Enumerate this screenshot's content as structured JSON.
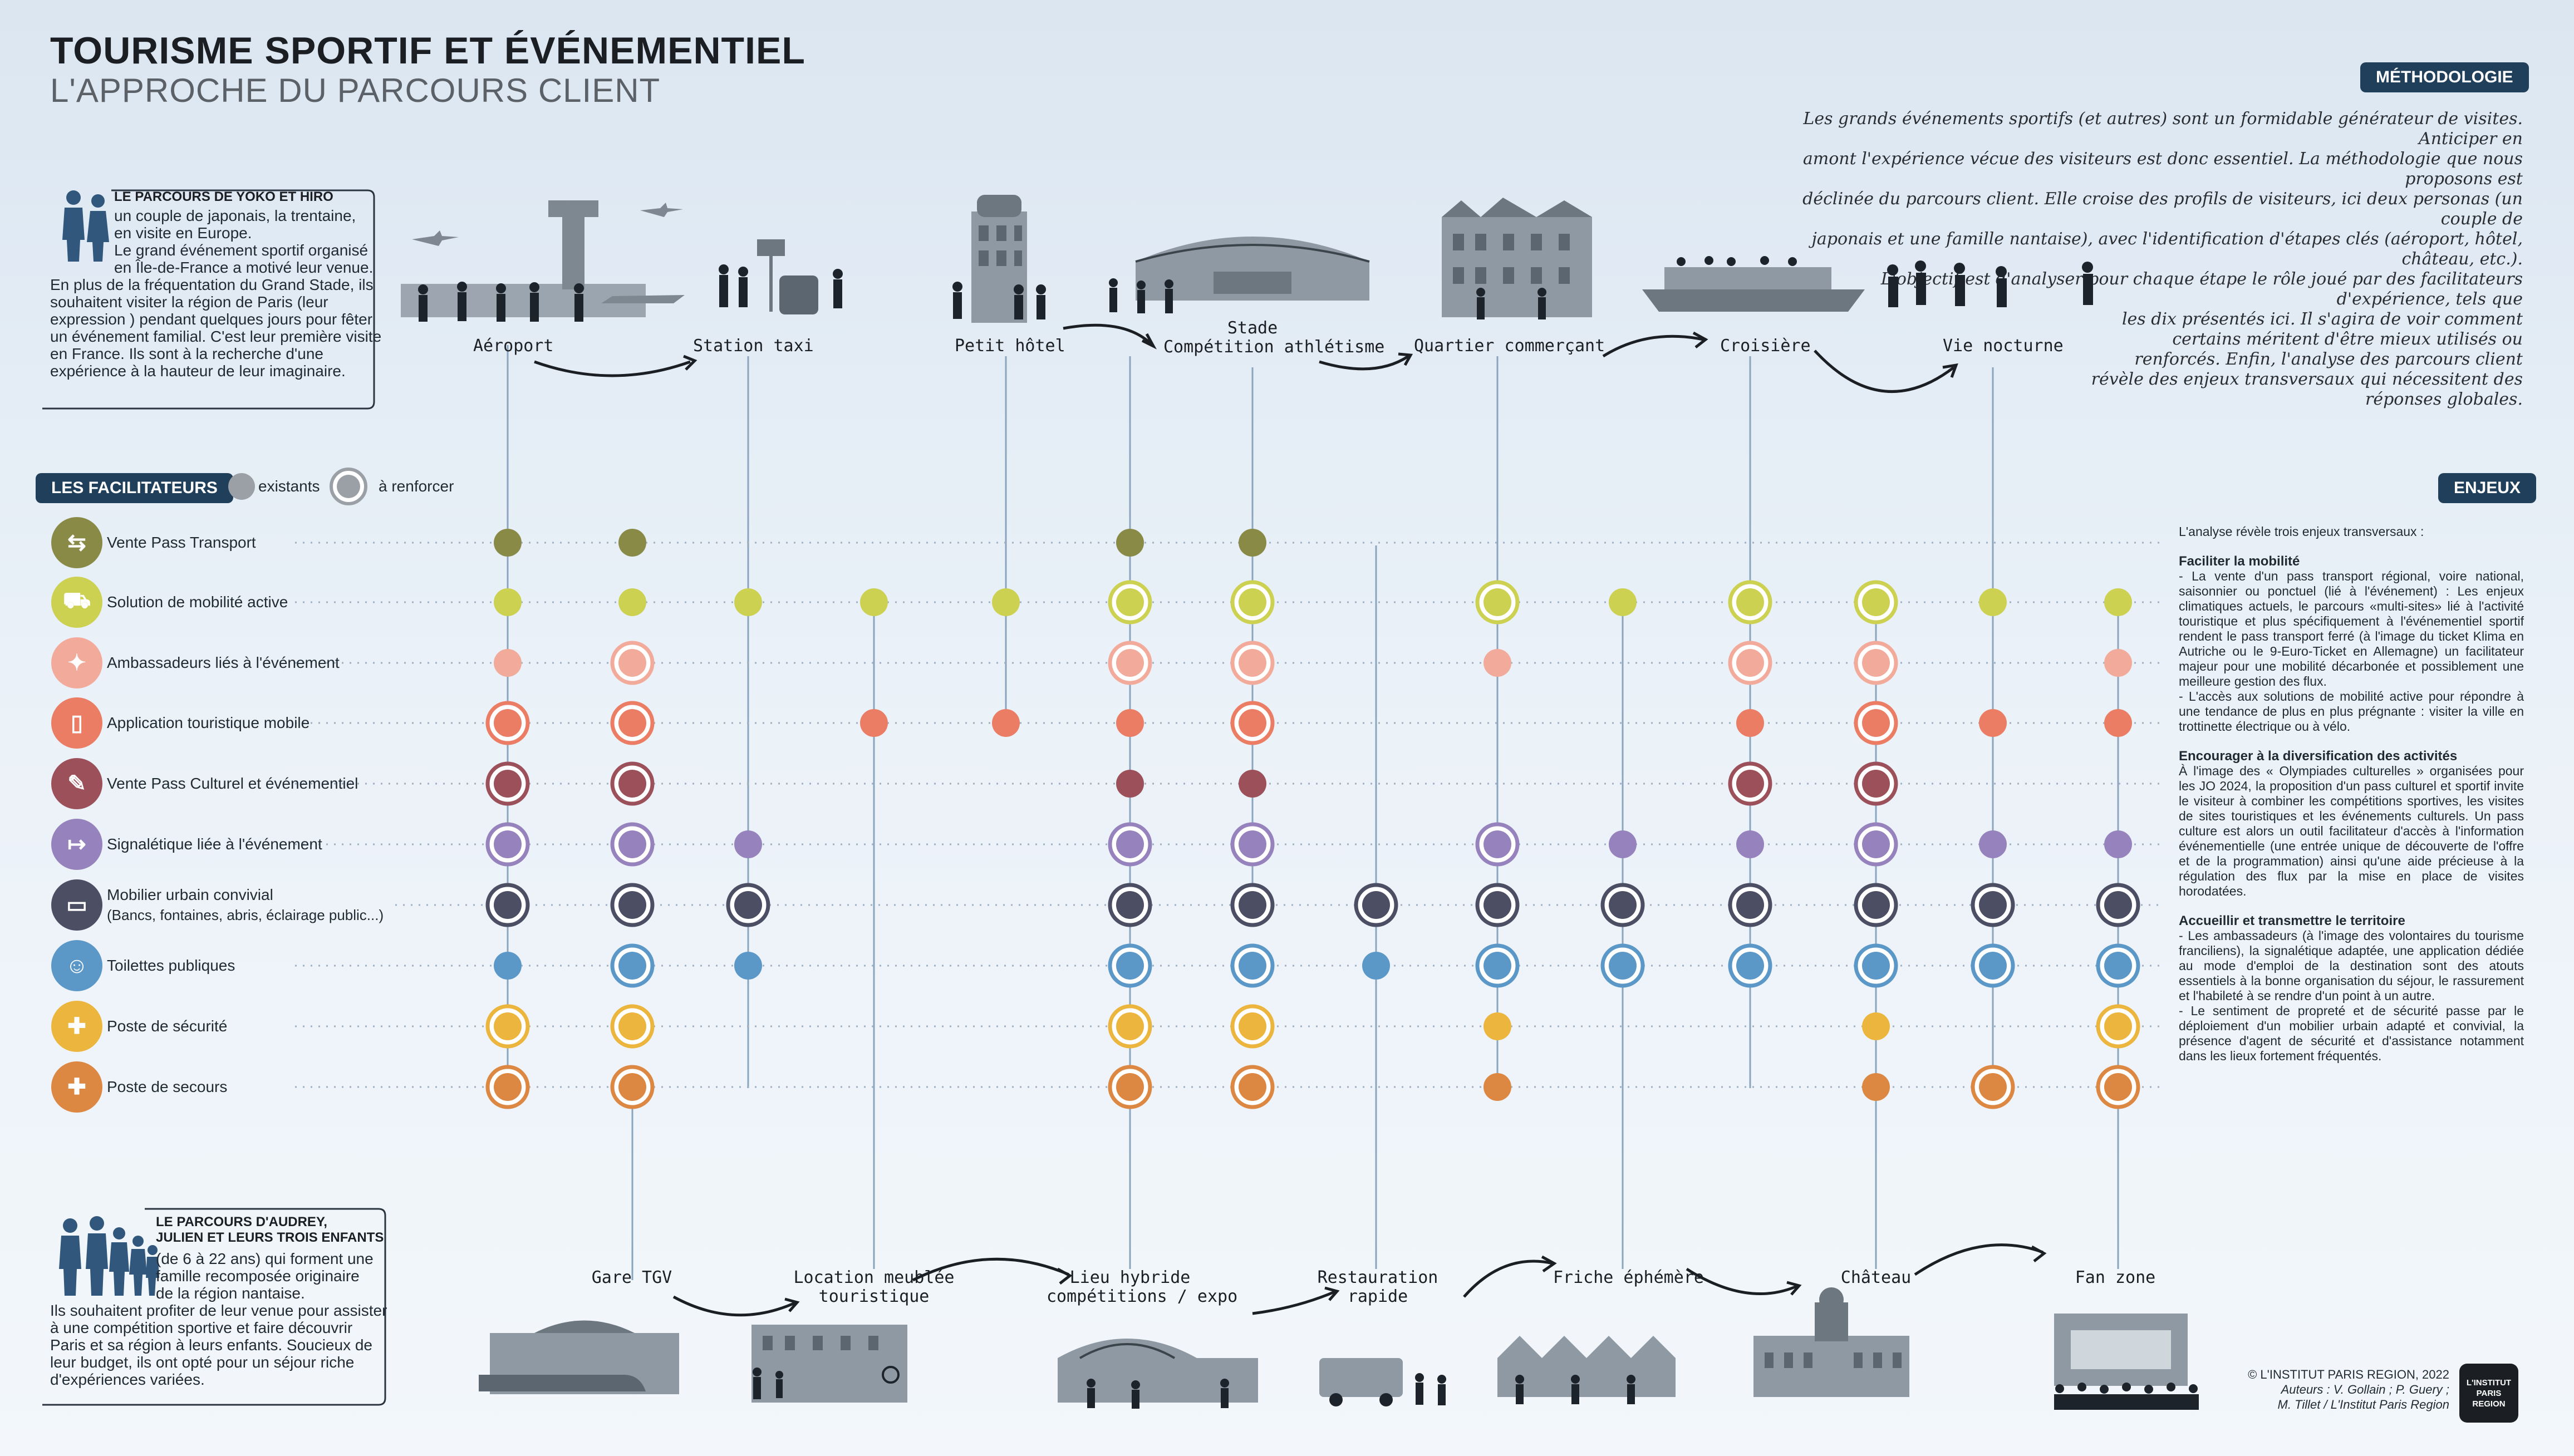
{
  "header": {
    "title": "TOURISME SPORTIF ET ÉVÉNEMENTIEL",
    "subtitle": "L'APPROCHE DU PARCOURS CLIENT"
  },
  "methodology": {
    "tag": "MÉTHODOLOGIE",
    "lines": [
      "Les grands événements sportifs (et autres) sont un formidable générateur de visites. Anticiper en",
      "amont l'expérience vécue des visiteurs est donc essentiel. La méthodologie que nous proposons est",
      "déclinée du parcours client. Elle croise des profils de visiteurs, ici deux personas (un couple de",
      "japonais et une famille nantaise), avec l'identification d'étapes clés (aéroport, hôtel, château, etc.).",
      "L'objectif est d'analyser pour chaque étape le rôle joué par des facilitateurs d'expérience, tels que",
      "les dix présentés ici. Il s'agira de voir comment",
      "certains méritent d'être mieux utilisés ou",
      "renforcés. Enfin, l'analyse des parcours client",
      "révèle des enjeux transversaux qui nécessitent des",
      "réponses globales."
    ]
  },
  "persona_top": {
    "title": "LE PARCOURS DE YOKO ET HIRO",
    "lines": [
      "un couple de japonais, la trentaine,",
      "en visite en Europe.",
      "Le grand événement sportif organisé",
      "en Île-de-France a motivé leur venue.",
      "En plus de la fréquentation du Grand Stade, ils",
      "souhaitent visiter la région de Paris (leur",
      "expression ) pendant quelques jours pour fêter",
      "un événement familial. C'est leur première visite",
      "en France. Ils sont à la recherche d'une",
      "expérience à la hauteur de leur imaginaire."
    ]
  },
  "persona_bottom": {
    "title_1": "LE PARCOURS D'AUDREY,",
    "title_2": "JULIEN ET LEURS TROIS ENFANTS",
    "lines": [
      "(de 6 à 22 ans) qui forment une",
      "famille recomposée originaire",
      "de la région nantaise.",
      "Ils souhaitent profiter de leur venue pour assister",
      "à une compétition sportive et faire découvrir",
      "Paris et sa région à leurs enfants. Soucieux de",
      "leur budget, ils ont opté pour un séjour riche",
      "d'expériences variées."
    ]
  },
  "stages_top": [
    "Aéroport",
    "Station taxi",
    "Petit hôtel",
    "Stade",
    "Compétition athlétisme",
    "Quartier commerçant",
    "Croisière",
    "Vie nocturne"
  ],
  "stages_bottom": [
    "Gare TGV",
    "Location meublée",
    "touristique",
    "Lieu hybride",
    "compétitions / expo",
    "Restauration",
    "rapide",
    "Friche éphémère",
    "Château",
    "Fan zone"
  ],
  "legend": {
    "tag": "LES FACILITATEURS",
    "existing": "existants",
    "reinforce": "à renforcer"
  },
  "facilitators": [
    {
      "label": "Vente Pass Transport",
      "color": "#8a8a47",
      "icon": "transport-icon"
    },
    {
      "label": "Solution de mobilité active",
      "color": "#cdd152",
      "icon": "scooter-icon"
    },
    {
      "label": "Ambassadeurs liés à l'événement",
      "color": "#f2ab9b",
      "icon": "compass-icon"
    },
    {
      "label": "Application touristique mobile",
      "color": "#ea7d63",
      "icon": "phone-icon"
    },
    {
      "label": "Vente Pass Culturel et événementiel",
      "color": "#9c5059",
      "icon": "ticket-icon"
    },
    {
      "label": "Signalétique liée à l'événement",
      "color": "#9682bc",
      "icon": "signpost-icon"
    },
    {
      "label": "Mobilier urbain convivial",
      "label2": "(Bancs, fontaines, abris, éclairage public...)",
      "color": "#4c4e63",
      "icon": "bench-icon"
    },
    {
      "label": "Toilettes publiques",
      "color": "#5b98c8",
      "icon": "toilets-icon"
    },
    {
      "label": "Poste de sécurité",
      "color": "#ecb63e",
      "icon": "security-icon"
    },
    {
      "label": "Poste de secours",
      "color": "#dc8742",
      "icon": "first-aid-icon"
    }
  ],
  "matrix": [
    [
      1,
      1,
      0,
      0,
      0,
      1,
      1,
      0,
      0,
      0,
      0,
      0,
      0,
      0
    ],
    [
      1,
      1,
      1,
      1,
      1,
      2,
      2,
      0,
      2,
      1,
      2,
      2,
      1,
      1
    ],
    [
      1,
      2,
      0,
      0,
      0,
      2,
      2,
      0,
      1,
      0,
      2,
      2,
      0,
      1
    ],
    [
      2,
      2,
      0,
      1,
      1,
      1,
      2,
      0,
      0,
      0,
      1,
      2,
      1,
      1
    ],
    [
      2,
      2,
      0,
      0,
      0,
      1,
      1,
      0,
      0,
      0,
      2,
      2,
      0,
      0
    ],
    [
      2,
      2,
      1,
      0,
      0,
      2,
      2,
      0,
      2,
      1,
      1,
      2,
      1,
      1
    ],
    [
      2,
      2,
      2,
      0,
      0,
      2,
      2,
      2,
      2,
      2,
      2,
      2,
      2,
      2
    ],
    [
      1,
      2,
      1,
      0,
      0,
      2,
      2,
      1,
      2,
      2,
      2,
      2,
      2,
      2
    ],
    [
      2,
      2,
      0,
      0,
      0,
      2,
      2,
      0,
      1,
      0,
      0,
      1,
      0,
      2
    ],
    [
      2,
      2,
      0,
      0,
      0,
      2,
      2,
      0,
      1,
      0,
      0,
      1,
      2,
      2
    ]
  ],
  "enjeux": {
    "tag": "ENJEUX",
    "intro": "L'analyse révèle trois enjeux transversaux :",
    "sections": [
      {
        "title": "Faciliter la mobilité",
        "text": "- La vente d'un pass transport régional, voire national, saisonnier ou ponctuel (lié à l'événement) : Les enjeux climatiques actuels, le parcours «multi-sites» lié à l'activité touristique et plus spécifiquement à l'événementiel sportif rendent le pass transport ferré (à l'image du ticket Klima en Autriche ou le 9-Euro-Ticket en Allemagne) un facilitateur majeur pour une mobilité décarbonée et possiblement une meilleure gestion des flux.",
        "text2": "- L'accès aux solutions de mobilité active pour répondre à une tendance de plus en plus prégnante : visiter la ville en trottinette électrique ou à vélo."
      },
      {
        "title": "Encourager à la diversification des activités",
        "text": "À l'image des « Olympiades culturelles » organisées pour les JO 2024, la proposition d'un pass culturel et sportif invite le visiteur à combiner les compétitions sportives, les visites de sites touristiques et les événements culturels. Un pass culture est alors un outil facilitateur d'accès à l'information événementielle (une entrée unique de découverte de l'offre et de la programmation) ainsi qu'une aide précieuse à la régulation des flux par la mise en place de visites horodatées."
      },
      {
        "title": "Accueillir et transmettre le territoire",
        "text": "- Les ambassadeurs (à l'image des volontaires du tourisme franciliens), la signalétique adaptée, une application dédiée au mode d'emploi de la destination sont des atouts essentiels à la bonne organisation du séjour, le rassurement et l'habileté à se rendre d'un point à un autre.",
        "text2": "- Le sentiment de propreté et de sécurité passe par le déploiement d'un mobilier urbain adapté et convivial, la présence d'agent de sécurité et d'assistance notamment dans les lieux fortement fréquentés."
      }
    ]
  },
  "credits": {
    "line1": "© L'INSTITUT PARIS REGION, 2022",
    "line2": "Auteurs : V. Gollain ; P. Guery ;",
    "line3": "M. Tillet / L'Institut Paris Region",
    "logo_1": "L'INSTITUT",
    "logo_2": "PARIS",
    "logo_3": "REGION"
  }
}
